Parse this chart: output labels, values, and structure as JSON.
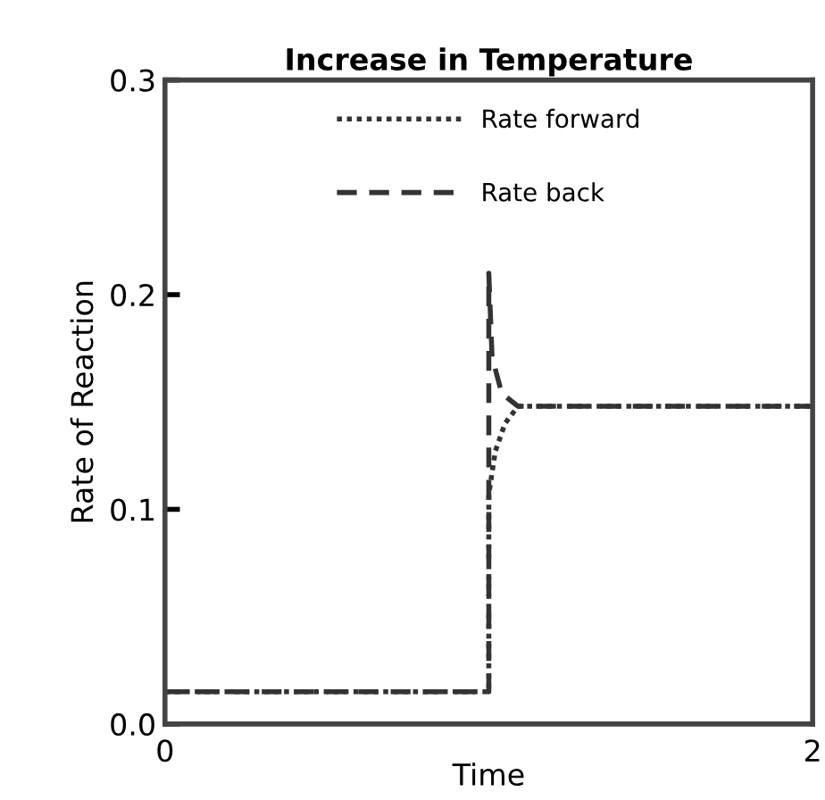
{
  "chart_data": {
    "type": "line",
    "title": "Increase in Temperature",
    "xlabel": "Time",
    "ylabel": "Rate of Reaction",
    "xlim": [
      0,
      2
    ],
    "ylim": [
      0,
      0.3
    ],
    "xticks": [
      0,
      2
    ],
    "yticks": [
      {
        "value": 0,
        "label": "0.0"
      },
      0.1,
      0.2,
      0.3
    ],
    "grid": false,
    "legend": "top",
    "marker": "none",
    "series": [
      {
        "name": "Rate forward",
        "color": "#333333",
        "line_style": "dotted",
        "x": [
          0,
          1.0,
          1.0,
          1.02,
          1.05,
          1.09,
          2
        ],
        "values": [
          0.015,
          0.015,
          0.107,
          0.127,
          0.14,
          0.148,
          0.148
        ]
      },
      {
        "name": "Rate back",
        "color": "#333333",
        "line_style": "dashed",
        "x": [
          0,
          1.0,
          1.0,
          1.01,
          1.04,
          1.09,
          2
        ],
        "values": [
          0.015,
          0.015,
          0.21,
          0.171,
          0.154,
          0.148,
          0.148
        ]
      }
    ]
  }
}
